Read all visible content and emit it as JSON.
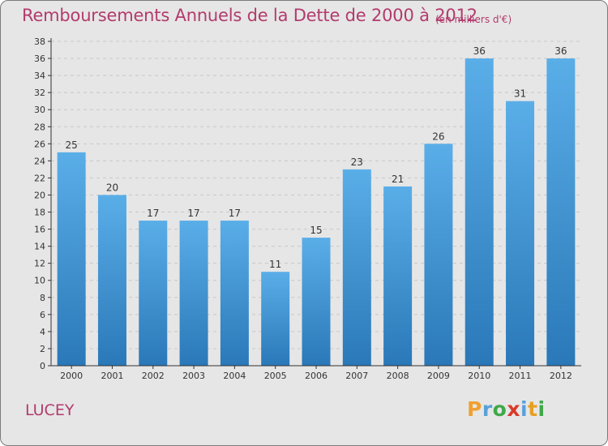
{
  "title": "Remboursements Annuels de la Dette de 2000 à 2012",
  "unit": "(en milliers d'€)",
  "town": "LUCEY",
  "logo": {
    "letters": [
      "P",
      "r",
      "o",
      "x",
      "i",
      "t",
      "i"
    ],
    "colors": [
      "#f0a030",
      "#5aa0d8",
      "#3fa84a",
      "#d83a2a",
      "#5aa0d8",
      "#e8a020",
      "#3fa84a"
    ]
  },
  "colors": {
    "background": "#e6e6e6",
    "bar_light": "#5aaee8",
    "bar_dark": "#2a78b8",
    "text_accent": "#b23b6c",
    "axis": "#333333"
  },
  "chart_data": {
    "type": "bar",
    "title": "Remboursements Annuels de la Dette de 2000 à 2012",
    "unit": "(en milliers d'€)",
    "categories": [
      "2000",
      "2001",
      "2002",
      "2003",
      "2004",
      "2005",
      "2006",
      "2007",
      "2008",
      "2009",
      "2010",
      "2011",
      "2012"
    ],
    "values": [
      25,
      20,
      17,
      17,
      17,
      11,
      15,
      23,
      21,
      26,
      36,
      31,
      36
    ],
    "ylim": [
      0,
      38
    ],
    "ytick_step": 2,
    "grid": true,
    "xlabel": "",
    "ylabel": ""
  }
}
